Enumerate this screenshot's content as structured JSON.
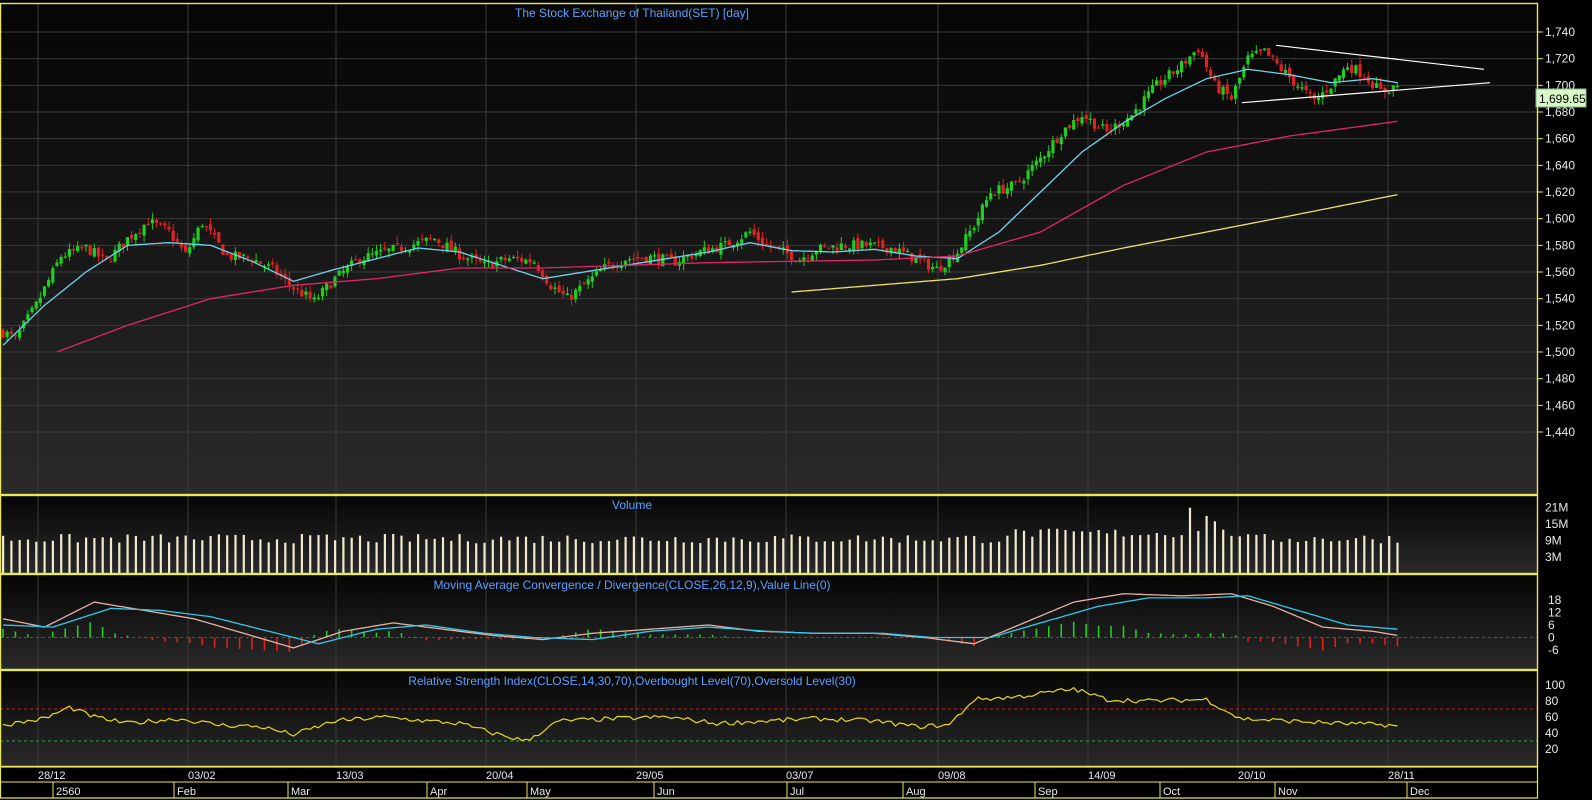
{
  "colors": {
    "background": "#000000",
    "frame": "#e8e85a",
    "title": "#5aa0ff",
    "candle_up": "#22cc22",
    "candle_down": "#dd2222",
    "ma_short": "#6fd3e8",
    "ma_mid": "#e0256a",
    "ma_long": "#e8e06a",
    "volume": "#f0ead0",
    "macd_line": "#e8b0a0",
    "signal_line": "#33c8e8",
    "rsi_line": "#e8d81a",
    "overbought": "#cc2222",
    "oversold": "#22aa44",
    "last_price_bg": "#d8f8c8"
  },
  "panels": {
    "price_title": "The Stock Exchange of Thailand(SET) [day]",
    "volume_title": "Volume",
    "macd_title": "Moving Average Convergence / Divergence(CLOSE,26,12,9),Value Line(0)",
    "rsi_title": "Relative Strength Index(CLOSE,14,30,70),Overbought Level(70),Oversold Level(30)"
  },
  "last_price_label": "1,699.65",
  "price_ticks": [
    "1,740",
    "1,720",
    "1,700",
    "1,680",
    "1,660",
    "1,640",
    "1,620",
    "1,600",
    "1,580",
    "1,560",
    "1,540",
    "1,520",
    "1,500",
    "1,480",
    "1,460",
    "1,440"
  ],
  "volume_ticks": [
    "21M",
    "15M",
    "9M",
    "3M"
  ],
  "macd_ticks": [
    "18",
    "12",
    "6",
    "0",
    "-6"
  ],
  "rsi_ticks": [
    "100",
    "80",
    "60",
    "40",
    "20"
  ],
  "x_labels_top": [
    "28/12",
    "03/02",
    "13/03",
    "20/04",
    "29/05",
    "03/07",
    "09/08",
    "14/09",
    "20/10",
    "28/11"
  ],
  "x_labels_bottom": [
    "2560",
    "Feb",
    "Mar",
    "Apr",
    "May",
    "Jun",
    "Jul",
    "Aug",
    "Sep",
    "Oct",
    "Nov",
    "Dec"
  ],
  "chart_data": [
    {
      "type": "candlestick",
      "title": "The Stock Exchange of Thailand(SET) [day]",
      "ylim": [
        1430,
        1750
      ],
      "last_price": 1699.65,
      "control_points": [
        [
          0,
          1515
        ],
        [
          3,
          1510
        ],
        [
          8,
          1535
        ],
        [
          14,
          1572
        ],
        [
          20,
          1578
        ],
        [
          25,
          1568
        ],
        [
          30,
          1585
        ],
        [
          35,
          1598
        ],
        [
          40,
          1590
        ],
        [
          44,
          1573
        ],
        [
          48,
          1597
        ],
        [
          54,
          1572
        ],
        [
          60,
          1570
        ],
        [
          65,
          1562
        ],
        [
          70,
          1548
        ],
        [
          75,
          1538
        ],
        [
          80,
          1555
        ],
        [
          86,
          1570
        ],
        [
          92,
          1575
        ],
        [
          98,
          1580
        ],
        [
          104,
          1585
        ],
        [
          110,
          1573
        ],
        [
          116,
          1565
        ],
        [
          122,
          1570
        ],
        [
          128,
          1568
        ],
        [
          132,
          1550
        ],
        [
          136,
          1540
        ],
        [
          140,
          1550
        ],
        [
          145,
          1563
        ],
        [
          150,
          1570
        ],
        [
          156,
          1571
        ],
        [
          162,
          1568
        ],
        [
          168,
          1575
        ],
        [
          174,
          1580
        ],
        [
          180,
          1590
        ],
        [
          184,
          1580
        ],
        [
          188,
          1575
        ],
        [
          192,
          1570
        ],
        [
          196,
          1577
        ],
        [
          202,
          1580
        ],
        [
          208,
          1580
        ],
        [
          214,
          1578
        ],
        [
          220,
          1570
        ],
        [
          225,
          1562
        ],
        [
          230,
          1575
        ],
        [
          234,
          1595
        ],
        [
          238,
          1620
        ],
        [
          244,
          1625
        ],
        [
          250,
          1645
        ],
        [
          255,
          1665
        ],
        [
          260,
          1678
        ],
        [
          266,
          1665
        ],
        [
          272,
          1678
        ],
        [
          278,
          1700
        ],
        [
          284,
          1715
        ],
        [
          288,
          1728
        ],
        [
          292,
          1700
        ],
        [
          296,
          1690
        ],
        [
          300,
          1720
        ],
        [
          304,
          1725
        ],
        [
          308,
          1712
        ],
        [
          312,
          1700
        ],
        [
          316,
          1688
        ],
        [
          320,
          1700
        ],
        [
          324,
          1715
        ],
        [
          328,
          1708
        ],
        [
          332,
          1695
        ],
        [
          336,
          1700
        ]
      ],
      "moving_averages": [
        {
          "period": "short",
          "control_points": [
            [
              0,
              1505
            ],
            [
              10,
              1535
            ],
            [
              20,
              1560
            ],
            [
              30,
              1580
            ],
            [
              40,
              1582
            ],
            [
              50,
              1580
            ],
            [
              60,
              1568
            ],
            [
              70,
              1553
            ],
            [
              80,
              1562
            ],
            [
              90,
              1570
            ],
            [
              100,
              1578
            ],
            [
              110,
              1575
            ],
            [
              120,
              1565
            ],
            [
              130,
              1555
            ],
            [
              140,
              1560
            ],
            [
              150,
              1565
            ],
            [
              160,
              1570
            ],
            [
              170,
              1575
            ],
            [
              180,
              1582
            ],
            [
              190,
              1576
            ],
            [
              200,
              1575
            ],
            [
              210,
              1577
            ],
            [
              220,
              1572
            ],
            [
              230,
              1570
            ],
            [
              240,
              1590
            ],
            [
              250,
              1620
            ],
            [
              260,
              1650
            ],
            [
              270,
              1672
            ],
            [
              280,
              1690
            ],
            [
              290,
              1705
            ],
            [
              300,
              1712
            ],
            [
              310,
              1708
            ],
            [
              320,
              1702
            ],
            [
              330,
              1705
            ],
            [
              336,
              1702
            ]
          ]
        },
        {
          "period": "mid",
          "control_points": [
            [
              13,
              1500
            ],
            [
              30,
              1520
            ],
            [
              50,
              1540
            ],
            [
              70,
              1550
            ],
            [
              90,
              1555
            ],
            [
              110,
              1563
            ],
            [
              130,
              1563
            ],
            [
              150,
              1565
            ],
            [
              170,
              1567
            ],
            [
              190,
              1568
            ],
            [
              210,
              1569
            ],
            [
              230,
              1572
            ],
            [
              250,
              1590
            ],
            [
              270,
              1625
            ],
            [
              290,
              1650
            ],
            [
              310,
              1662
            ],
            [
              336,
              1673
            ]
          ]
        },
        {
          "period": "long",
          "control_points": [
            [
              190,
              1545
            ],
            [
              210,
              1550
            ],
            [
              230,
              1555
            ],
            [
              250,
              1565
            ],
            [
              270,
              1578
            ],
            [
              290,
              1590
            ],
            [
              310,
              1602
            ],
            [
              336,
              1618
            ]
          ]
        }
      ],
      "triangle_upper": [
        [
          1710,
          1730
        ],
        [
          1820,
          1712
        ]
      ],
      "triangle_lower": [
        [
          1710,
          1687
        ],
        [
          1820,
          1702
        ]
      ]
    },
    {
      "type": "bar",
      "title": "Volume",
      "ylim": [
        0,
        24
      ],
      "unit": "M",
      "base_level": 9.5,
      "spikes": [
        [
          287,
          21
        ],
        [
          291,
          18
        ],
        [
          293,
          16
        ]
      ]
    },
    {
      "type": "line",
      "title": "Moving Average Convergence / Divergence(CLOSE,26,12,9),Value Line(0)",
      "ylim": [
        -10,
        22
      ],
      "macd_points": [
        [
          0,
          9
        ],
        [
          10,
          5
        ],
        [
          22,
          17
        ],
        [
          34,
          13
        ],
        [
          46,
          9
        ],
        [
          58,
          2
        ],
        [
          70,
          -5
        ],
        [
          82,
          3
        ],
        [
          94,
          7
        ],
        [
          106,
          4
        ],
        [
          118,
          1
        ],
        [
          130,
          -1
        ],
        [
          142,
          2
        ],
        [
          156,
          4
        ],
        [
          170,
          6
        ],
        [
          182,
          3
        ],
        [
          196,
          2
        ],
        [
          210,
          2
        ],
        [
          222,
          0
        ],
        [
          234,
          -3
        ],
        [
          246,
          7
        ],
        [
          258,
          17
        ],
        [
          270,
          21
        ],
        [
          284,
          20
        ],
        [
          296,
          21
        ],
        [
          306,
          15
        ],
        [
          318,
          5
        ],
        [
          330,
          3
        ],
        [
          336,
          1
        ]
      ],
      "signal_points": [
        [
          0,
          6
        ],
        [
          12,
          5
        ],
        [
          26,
          14
        ],
        [
          38,
          13
        ],
        [
          50,
          10
        ],
        [
          62,
          4
        ],
        [
          76,
          -3
        ],
        [
          90,
          4
        ],
        [
          102,
          6
        ],
        [
          116,
          2
        ],
        [
          128,
          0
        ],
        [
          142,
          -1
        ],
        [
          156,
          3
        ],
        [
          170,
          5
        ],
        [
          184,
          3
        ],
        [
          196,
          2
        ],
        [
          212,
          2
        ],
        [
          224,
          0
        ],
        [
          238,
          0
        ],
        [
          250,
          7
        ],
        [
          264,
          15
        ],
        [
          276,
          19
        ],
        [
          290,
          19
        ],
        [
          300,
          20
        ],
        [
          312,
          13
        ],
        [
          324,
          6
        ],
        [
          336,
          4
        ]
      ]
    },
    {
      "type": "line",
      "title": "Relative Strength Index(CLOSE,14,30,70),Overbought Level(70),Oversold Level(30)",
      "ylim": [
        10,
        110
      ],
      "overbought": 70,
      "oversold": 30,
      "control_points": [
        [
          0,
          50
        ],
        [
          10,
          58
        ],
        [
          16,
          72
        ],
        [
          22,
          60
        ],
        [
          30,
          52
        ],
        [
          42,
          58
        ],
        [
          52,
          50
        ],
        [
          62,
          48
        ],
        [
          70,
          38
        ],
        [
          80,
          55
        ],
        [
          92,
          60
        ],
        [
          102,
          55
        ],
        [
          110,
          52
        ],
        [
          118,
          40
        ],
        [
          126,
          30
        ],
        [
          134,
          55
        ],
        [
          148,
          58
        ],
        [
          160,
          60
        ],
        [
          172,
          52
        ],
        [
          184,
          55
        ],
        [
          196,
          58
        ],
        [
          210,
          55
        ],
        [
          220,
          48
        ],
        [
          228,
          50
        ],
        [
          234,
          82
        ],
        [
          244,
          85
        ],
        [
          258,
          95
        ],
        [
          266,
          82
        ],
        [
          276,
          80
        ],
        [
          290,
          82
        ],
        [
          298,
          58
        ],
        [
          310,
          55
        ],
        [
          322,
          52
        ],
        [
          334,
          50
        ],
        [
          336,
          48
        ]
      ]
    }
  ]
}
